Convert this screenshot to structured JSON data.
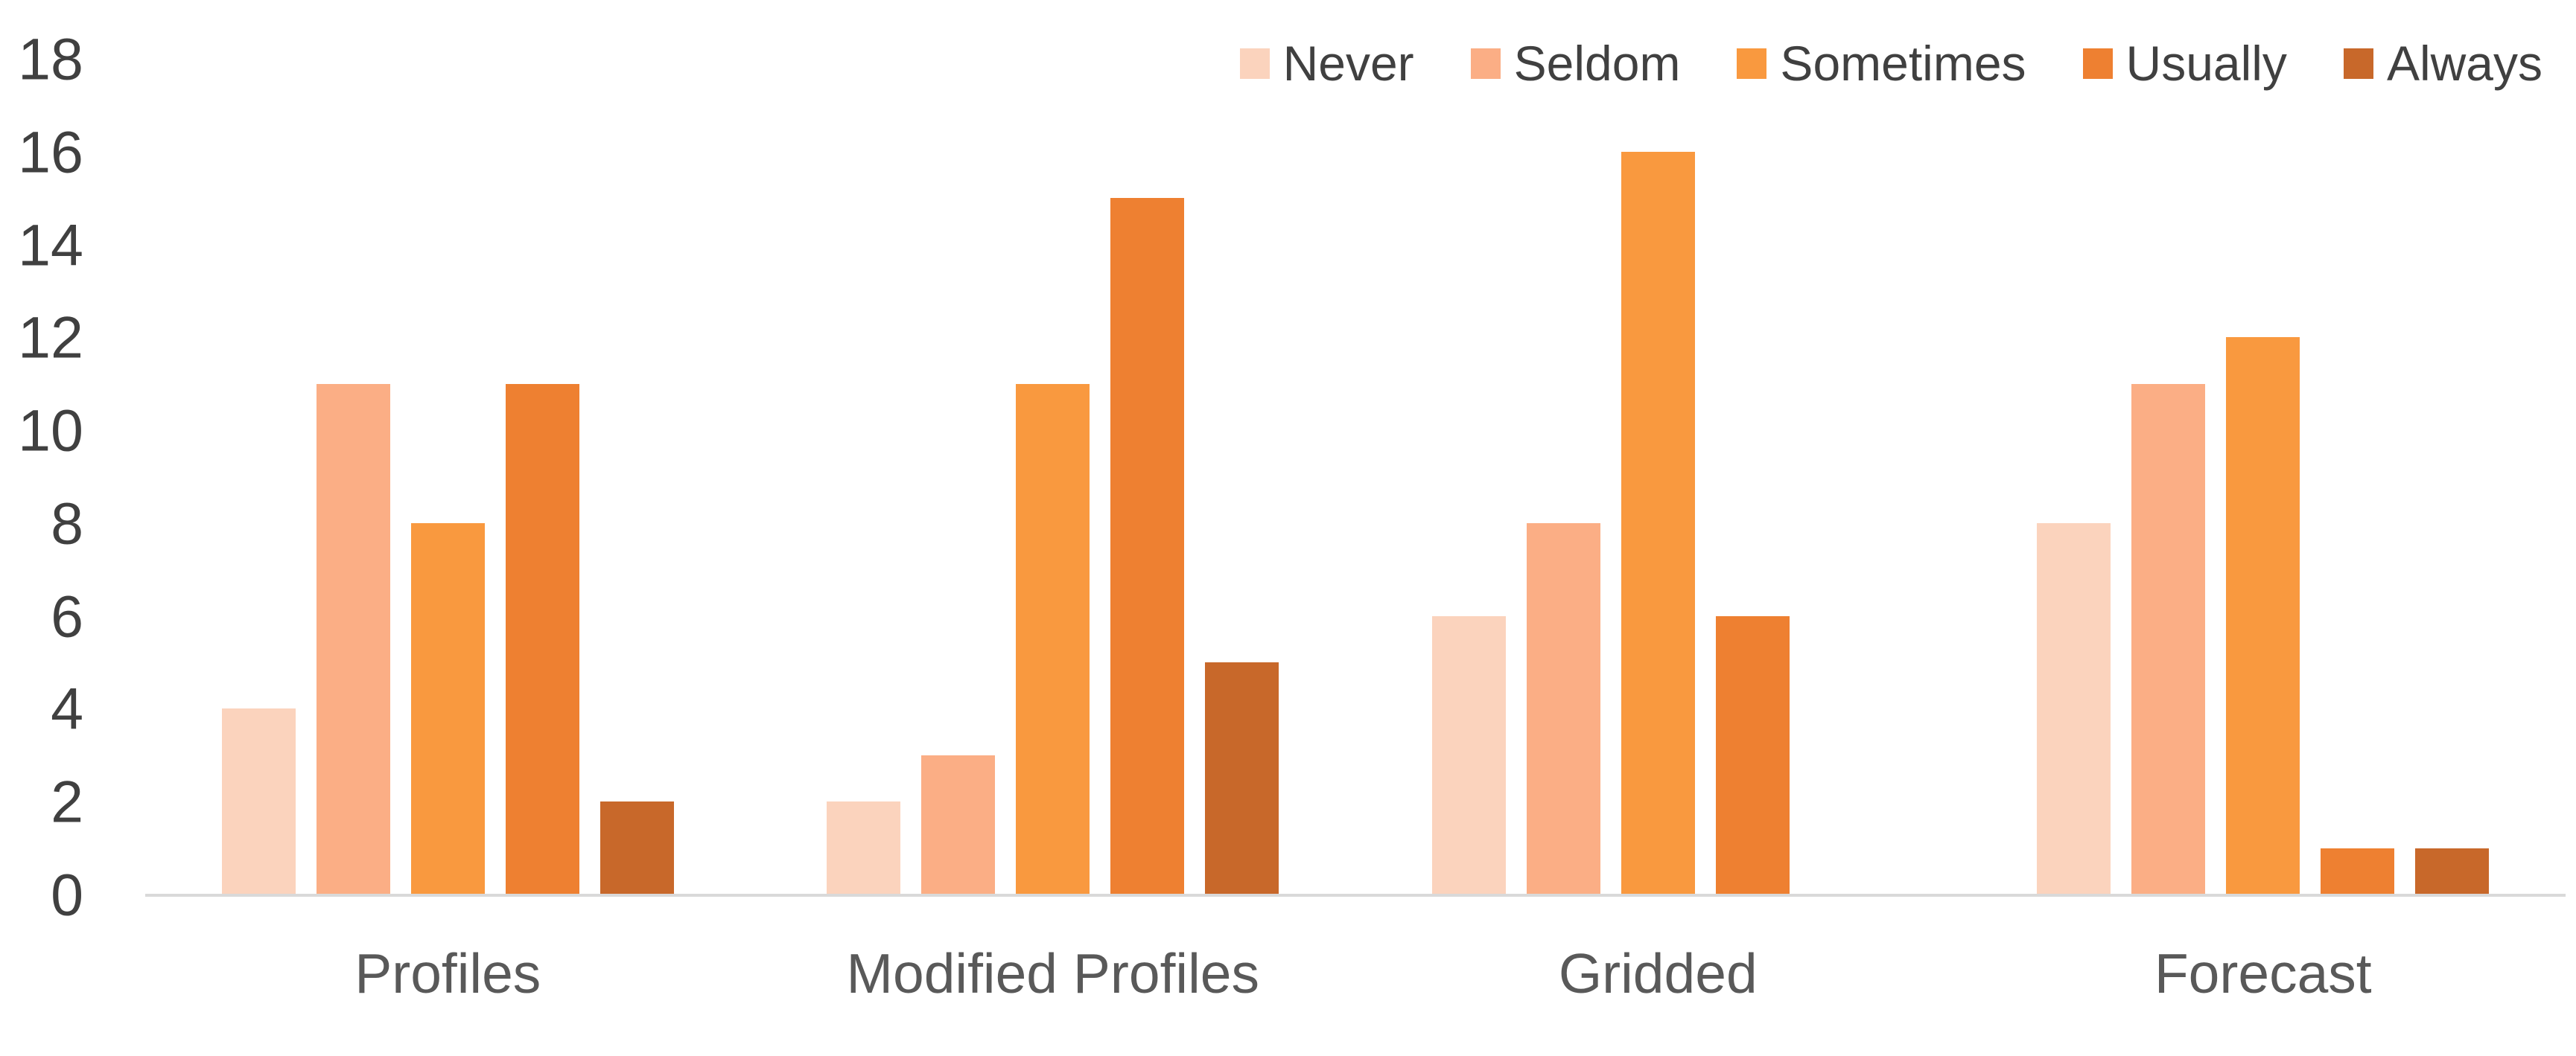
{
  "chart_data": {
    "type": "bar",
    "title": "",
    "xlabel": "",
    "ylabel": "",
    "categories": [
      "Profiles",
      "Modified Profiles",
      "Gridded",
      "Forecast"
    ],
    "series": [
      {
        "name": "Never",
        "color": "#FBD3BD",
        "values": [
          4,
          2,
          6,
          8
        ]
      },
      {
        "name": "Seldom",
        "color": "#FBAE85",
        "values": [
          11,
          3,
          8,
          11
        ]
      },
      {
        "name": "Sometimes",
        "color": "#F9993F",
        "values": [
          8,
          11,
          16,
          12
        ]
      },
      {
        "name": "Usually",
        "color": "#EE8031",
        "values": [
          11,
          15,
          6,
          1
        ]
      },
      {
        "name": "Always",
        "color": "#C8682A",
        "values": [
          2,
          5,
          0,
          1
        ]
      }
    ],
    "ylim": [
      0,
      18
    ],
    "yticks": [
      0,
      2,
      4,
      6,
      8,
      10,
      12,
      14,
      16,
      18
    ],
    "grid": false,
    "legend_position": "top-right",
    "axis_line_color": "#D9D9D9",
    "tick_label_color": "#404040",
    "category_label_color": "#595959",
    "legend_label_color": "#404040",
    "background_color": "#FFFFFF"
  }
}
